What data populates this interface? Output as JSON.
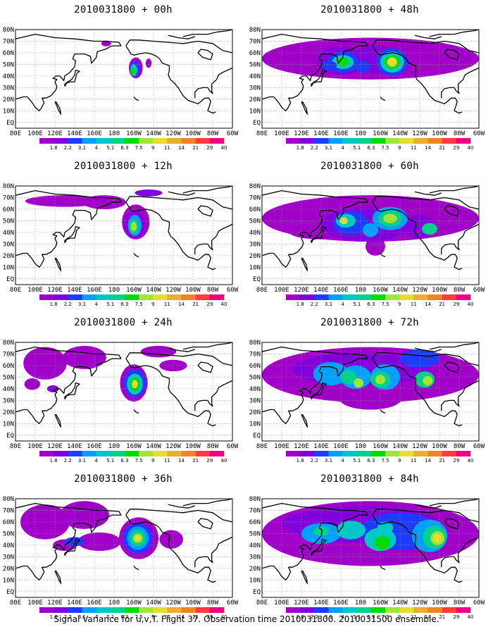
{
  "panels": [
    {
      "title": "2010031800 + 00h",
      "lead": "00h"
    },
    {
      "title": "2010031800 + 48h",
      "lead": "48h"
    },
    {
      "title": "2010031800 + 12h",
      "lead": "12h"
    },
    {
      "title": "2010031800 + 60h",
      "lead": "60h"
    },
    {
      "title": "2010031800 + 24h",
      "lead": "24h"
    },
    {
      "title": "2010031800 + 72h",
      "lead": "72h"
    },
    {
      "title": "2010031800 + 36h",
      "lead": "36h"
    },
    {
      "title": "2010031800 + 84h",
      "lead": "84h"
    }
  ],
  "lat_labels": [
    "80N",
    "70N",
    "60N",
    "50N",
    "40N",
    "30N",
    "20N",
    "10N",
    "EQ"
  ],
  "lon_labels": [
    "80E",
    "100E",
    "120E",
    "140E",
    "160E",
    "180",
    "160W",
    "140W",
    "120W",
    "100W",
    "80W",
    "60W"
  ],
  "colorbar": {
    "levels": [
      "1.8",
      "2.2",
      "3.1",
      "4",
      "5.1",
      "6.3",
      "7.5",
      "9",
      "11",
      "14",
      "21",
      "29",
      "40"
    ],
    "colors": [
      "#a000c8",
      "#8200dc",
      "#1e3cff",
      "#00a0ff",
      "#00c8c8",
      "#00d28c",
      "#00dc00",
      "#a0e632",
      "#e6dc32",
      "#e6af2d",
      "#f08228",
      "#fa3c3c",
      "#f00082"
    ]
  },
  "caption": "Signal Variance for u,v,T. Flight 37. Observation time 2010031800. 2010031500 ensemble."
}
